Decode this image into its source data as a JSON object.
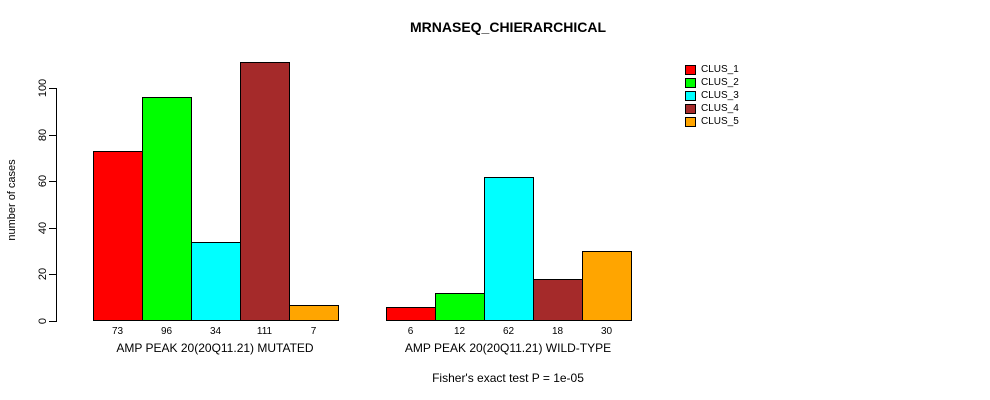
{
  "chart_data": {
    "type": "bar",
    "title": "MRNASEQ_CHIERARCHICAL",
    "ylabel": "number of cases",
    "xlabel": "",
    "ylim": [
      0,
      111
    ],
    "y_ticks": [
      0,
      20,
      40,
      60,
      80,
      100
    ],
    "grid": false,
    "legend_position": "right",
    "series": [
      "CLUS_1",
      "CLUS_2",
      "CLUS_3",
      "CLUS_4",
      "CLUS_5"
    ],
    "colors": [
      "#FF0000",
      "#00FF00",
      "#00FFFF",
      "#A52A2A",
      "#FFA500"
    ],
    "groups": [
      {
        "label": "AMP PEAK 20(20Q11.21) MUTATED",
        "values": [
          73,
          96,
          34,
          111,
          7
        ]
      },
      {
        "label": "AMP PEAK 20(20Q11.21) WILD-TYPE",
        "values": [
          6,
          12,
          62,
          18,
          30
        ]
      }
    ],
    "annotation": "Fisher's exact test P = 1e-05"
  }
}
